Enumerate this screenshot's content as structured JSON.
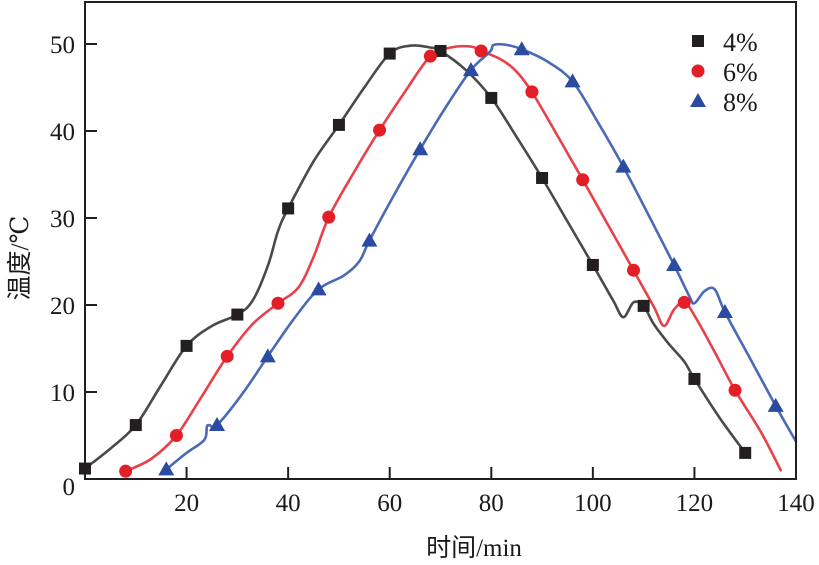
{
  "chart_data": {
    "type": "line",
    "title": "",
    "xlabel": "时间/min",
    "ylabel": "温度/℃",
    "xlim": [
      0,
      140
    ],
    "ylim": [
      0,
      55
    ],
    "xticks": [
      20,
      40,
      60,
      80,
      100,
      120,
      140
    ],
    "yticks": [
      0,
      10,
      20,
      30,
      40,
      50
    ],
    "x_tick_labels": [
      "20",
      "40",
      "60",
      "80",
      "100",
      "120",
      "140"
    ],
    "y_tick_labels": [
      "0",
      "10",
      "20",
      "30",
      "40",
      "50"
    ],
    "grid": false,
    "legend": "top-right",
    "series": [
      {
        "name": "4%",
        "color": "#231f20",
        "line_color": "#4a4a4a",
        "marker": "square",
        "markers": {
          "x": [
            0,
            10,
            20,
            30,
            40,
            50,
            60,
            70,
            80,
            90,
            100,
            110,
            120,
            130
          ],
          "y": [
            1.2,
            6.2,
            15.3,
            18.9,
            31.1,
            40.7,
            48.9,
            49.2,
            43.8,
            34.6,
            24.6,
            19.9,
            11.5,
            3.0
          ]
        },
        "curve": {
          "x": [
            0,
            5,
            10,
            15,
            20,
            25,
            30,
            33,
            36,
            38,
            40,
            45,
            50,
            55,
            60,
            64,
            68,
            70,
            75,
            80,
            85,
            90,
            95,
            100,
            104,
            106,
            108,
            110,
            112,
            115,
            118,
            120,
            125,
            130
          ],
          "y": [
            1.2,
            3.5,
            6.2,
            10.8,
            15.3,
            17.6,
            18.9,
            20.5,
            24.5,
            28.5,
            31.1,
            36.5,
            40.7,
            45.0,
            48.9,
            49.8,
            49.6,
            49.2,
            47.0,
            43.8,
            39.3,
            34.6,
            29.6,
            24.6,
            20.5,
            18.6,
            20.3,
            19.9,
            17.8,
            15.5,
            13.5,
            11.5,
            7.0,
            3.0
          ]
        }
      },
      {
        "name": "6%",
        "color": "#e41e26",
        "line_color": "#e8414a",
        "marker": "circle",
        "markers": {
          "x": [
            8,
            18,
            28,
            38,
            48,
            58,
            68,
            78,
            88,
            98,
            108,
            118,
            128
          ],
          "y": [
            0.9,
            5.0,
            14.1,
            20.2,
            30.1,
            40.1,
            48.6,
            49.2,
            44.5,
            34.4,
            24.0,
            20.3,
            10.2
          ]
        },
        "curve": {
          "x": [
            8,
            13,
            18,
            23,
            28,
            33,
            38,
            42,
            45,
            48,
            53,
            58,
            63,
            68,
            72,
            76,
            78,
            82,
            85,
            88,
            93,
            98,
            103,
            108,
            112,
            114,
            116,
            118,
            120,
            124,
            128,
            133,
            137
          ],
          "y": [
            0.9,
            2.3,
            5.0,
            9.5,
            14.1,
            17.8,
            20.2,
            22.0,
            25.5,
            30.1,
            35.3,
            40.1,
            44.5,
            48.6,
            49.6,
            49.7,
            49.2,
            48.2,
            46.8,
            44.5,
            39.5,
            34.4,
            29.2,
            24.0,
            19.8,
            17.6,
            19.5,
            20.3,
            18.8,
            14.6,
            10.2,
            5.5,
            1.0
          ]
        }
      },
      {
        "name": "8%",
        "color": "#2b4ba0",
        "line_color": "#4a6ab5",
        "marker": "triangle",
        "markers": {
          "x": [
            16,
            26,
            36,
            46,
            56,
            66,
            76,
            86,
            96,
            106,
            116,
            126,
            136
          ],
          "y": [
            1.1,
            6.2,
            14.1,
            21.8,
            27.4,
            37.9,
            47.0,
            49.4,
            45.7,
            35.9,
            24.6,
            19.2,
            8.4
          ]
        },
        "curve": {
          "x": [
            16,
            20,
            23.5,
            24,
            24.5,
            26,
            31,
            36,
            41,
            46,
            51,
            54,
            56,
            61,
            66,
            71,
            76,
            79,
            80,
            80.5,
            83,
            86,
            91,
            96,
            101,
            106,
            111,
            116,
            119,
            120,
            122,
            124,
            126,
            131,
            136,
            140
          ],
          "y": [
            1.1,
            3.0,
            4.5,
            6.0,
            6.2,
            6.2,
            9.8,
            14.1,
            18.3,
            21.8,
            23.4,
            25.0,
            27.4,
            32.8,
            37.9,
            42.7,
            47.0,
            48.7,
            49.3,
            49.9,
            49.9,
            49.4,
            48.0,
            45.7,
            41.0,
            35.9,
            30.3,
            24.6,
            21.0,
            20.2,
            21.6,
            21.8,
            19.2,
            13.8,
            8.4,
            4.3
          ]
        }
      }
    ]
  }
}
